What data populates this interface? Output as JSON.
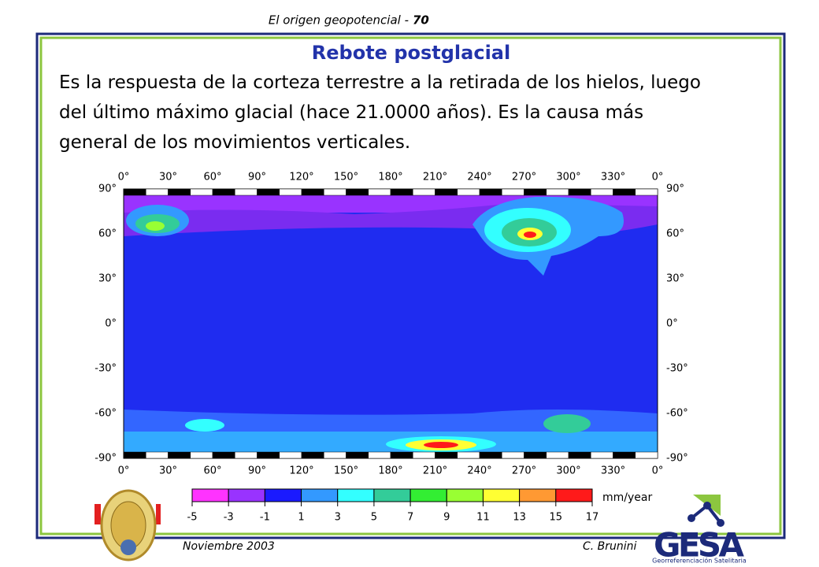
{
  "header": {
    "title": "El origen geopotencial -",
    "page": "70"
  },
  "slide": {
    "title": "Rebote postglacial",
    "body_lines": [
      "Es la respuesta de la corteza terrestre a la retirada de los hielos, luego",
      "del último máximo glacial (hace 21.0000 años). Es la causa más",
      "general de los movimientos verticales."
    ]
  },
  "map": {
    "lon_labels": [
      "0°",
      "30°",
      "60°",
      "90°",
      "120°",
      "150°",
      "180°",
      "210°",
      "240°",
      "270°",
      "300°",
      "330°",
      "0°"
    ],
    "lat_labels": [
      "90°",
      "60°",
      "30°",
      "0°",
      "-30°",
      "-60°",
      "-90°"
    ]
  },
  "colorbar": {
    "colors": [
      "#ff33ff",
      "#9933ff",
      "#1a1aff",
      "#3399ff",
      "#33ffff",
      "#33cc99",
      "#33ee33",
      "#99ff33",
      "#ffff33",
      "#ff9933",
      "#ff1a1a"
    ],
    "labels": [
      -5,
      -3,
      -1,
      1,
      3,
      5,
      7,
      9,
      11,
      13,
      15,
      17
    ],
    "unit": "mm/year"
  },
  "footer": {
    "date": "Noviembre 2003",
    "author": "C. Brunini"
  },
  "logo": {
    "name": "GESA",
    "subtitle": "Georreferenciación Satelitaria"
  }
}
